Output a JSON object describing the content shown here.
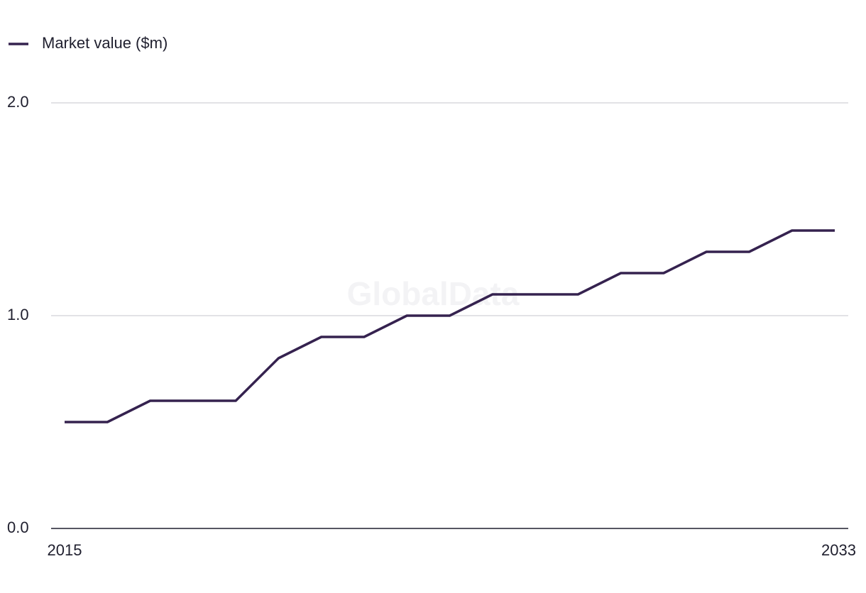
{
  "chart_data": {
    "type": "line",
    "watermark": "GlobalData",
    "x": [
      2015,
      2016,
      2017,
      2018,
      2019,
      2020,
      2021,
      2022,
      2023,
      2024,
      2025,
      2026,
      2027,
      2028,
      2029,
      2030,
      2031,
      2032,
      2033
    ],
    "series": [
      {
        "name": "Market value ($m)",
        "color": "#35224f",
        "values": [
          0.5,
          0.5,
          0.6,
          0.6,
          0.6,
          0.8,
          0.9,
          0.9,
          1.0,
          1.0,
          1.1,
          1.1,
          1.1,
          1.2,
          1.2,
          1.3,
          1.3,
          1.4,
          1.4
        ]
      }
    ],
    "xlim": [
      2015,
      2033
    ],
    "xticks": [
      2015,
      2033
    ],
    "ylim": [
      0,
      2
    ],
    "yticks": [
      {
        "value": 0,
        "label": "0.0"
      },
      {
        "value": 1,
        "label": "1.0"
      },
      {
        "value": 2,
        "label": "2.0"
      }
    ],
    "grid": true,
    "legend": "top-left"
  }
}
